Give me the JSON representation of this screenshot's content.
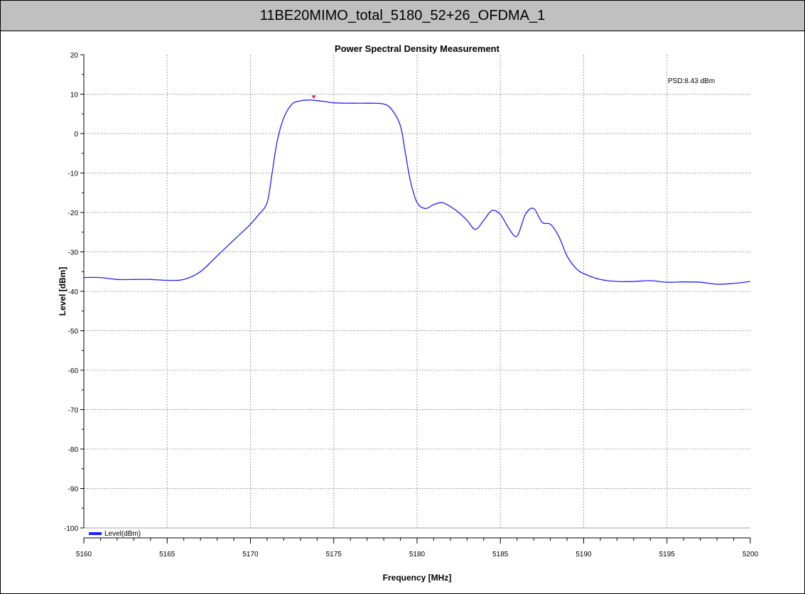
{
  "header": {
    "title": "11BE20MIMO_total_5180_52+26_OFDMA_1"
  },
  "colors": {
    "trace": "#1f1fff",
    "marker": "#e0204a",
    "grid": "#a0a0a0",
    "header_bg": "#c0c0c0"
  },
  "chart_data": {
    "type": "line",
    "title": "Power Spectral Density Measurement",
    "xlabel": "Frequency [MHz]",
    "ylabel": "Level [dBm]",
    "xlim": [
      5160,
      5200
    ],
    "ylim": [
      -100,
      20
    ],
    "x_ticks": [
      5160,
      5165,
      5170,
      5175,
      5180,
      5185,
      5190,
      5195,
      5200
    ],
    "y_ticks": [
      20,
      10,
      0,
      -10,
      -20,
      -30,
      -40,
      -50,
      -60,
      -70,
      -80,
      -90,
      -100
    ],
    "grid": true,
    "legend": {
      "position": "bottom-left",
      "entries": [
        "Level(dBm)"
      ]
    },
    "annotation": {
      "text": "PSD:8.43 dBm"
    },
    "marker": {
      "x": 5173.8,
      "y": 8.43
    },
    "series": [
      {
        "name": "Level(dBm)",
        "x": [
          5160,
          5161,
          5162,
          5163,
          5164,
          5165,
          5166,
          5167,
          5168,
          5169,
          5169.5,
          5170,
          5170.5,
          5171,
          5171.3,
          5171.6,
          5172,
          5172.5,
          5173,
          5173.5,
          5173.8,
          5174.5,
          5175,
          5176,
          5177,
          5178,
          5178.5,
          5179,
          5179.3,
          5179.6,
          5180,
          5180.5,
          5181,
          5181.5,
          5182,
          5182.5,
          5183,
          5183.5,
          5184,
          5184.5,
          5185,
          5185.5,
          5186,
          5186.5,
          5187,
          5187.5,
          5188,
          5188.5,
          5189,
          5189.5,
          5190,
          5191,
          5192,
          5193,
          5194,
          5195,
          5196,
          5197,
          5198,
          5199,
          5200
        ],
        "y": [
          -36.5,
          -36.5,
          -37,
          -37,
          -37,
          -37.2,
          -37,
          -35,
          -31,
          -27,
          -25,
          -23,
          -20.5,
          -17.5,
          -10,
          -2,
          4,
          7.5,
          8.3,
          8.5,
          8.43,
          8.1,
          7.8,
          7.7,
          7.7,
          7.5,
          6,
          2,
          -5,
          -12,
          -17.5,
          -19,
          -18,
          -17.5,
          -18.5,
          -20,
          -22,
          -24.3,
          -22,
          -19.5,
          -20.5,
          -24,
          -26,
          -20.5,
          -19,
          -22.5,
          -23,
          -26,
          -31,
          -34,
          -35.5,
          -37,
          -37.5,
          -37.5,
          -37.3,
          -37.7,
          -37.6,
          -37.7,
          -38.2,
          -38,
          -37.5
        ]
      }
    ]
  }
}
